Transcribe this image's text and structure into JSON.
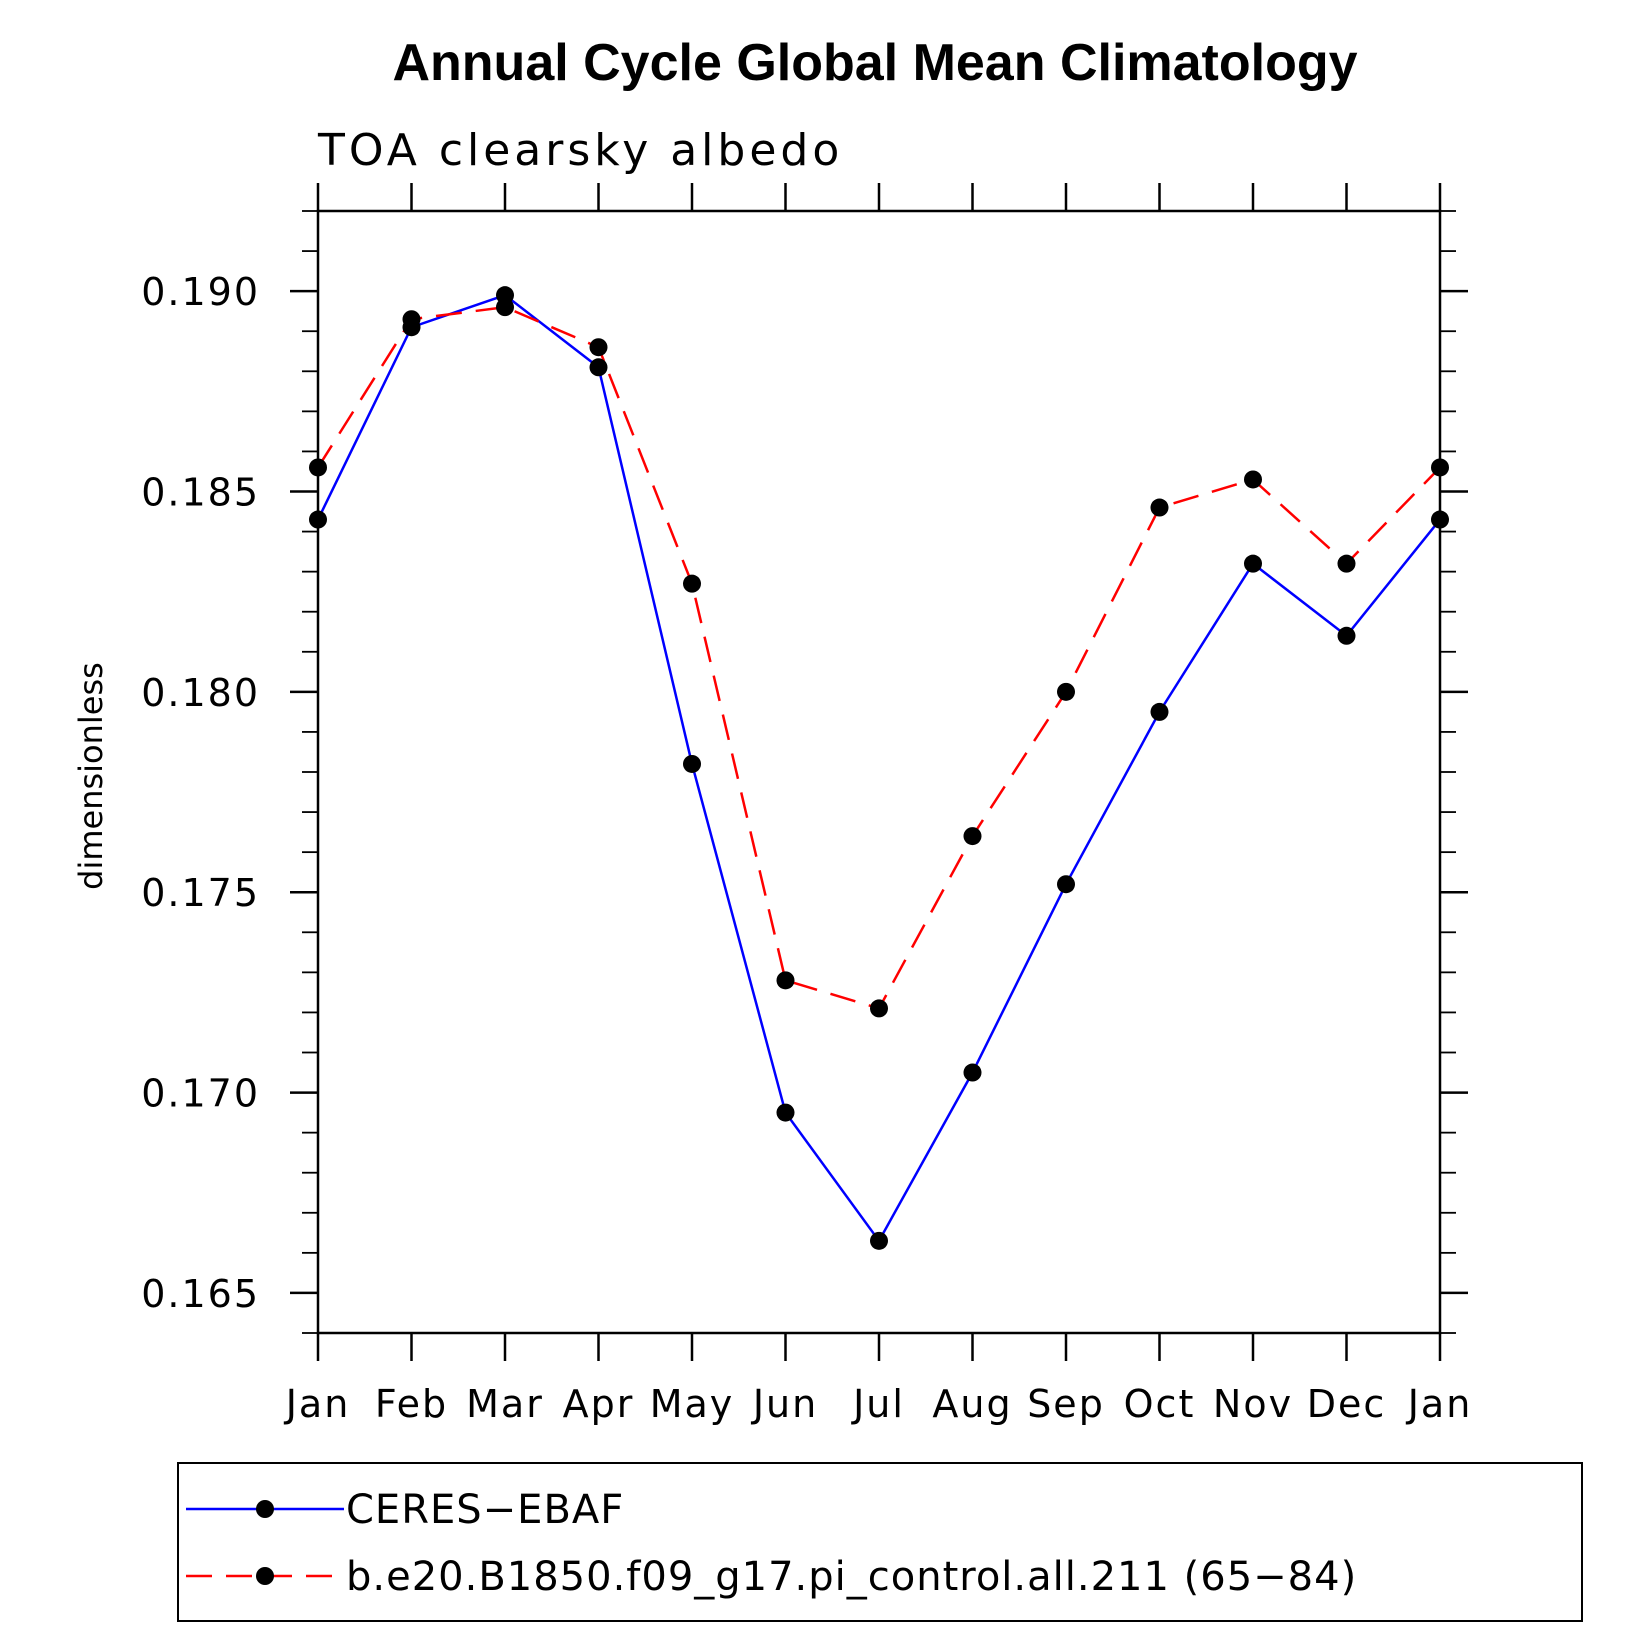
{
  "chart_data": {
    "type": "line",
    "title": "Annual Cycle Global Mean Climatology",
    "subtitle": "TOA clearsky albedo",
    "ylabel": "dimensionless",
    "xlabel": "",
    "categories": [
      "Jan",
      "Feb",
      "Mar",
      "Apr",
      "May",
      "Jun",
      "Jul",
      "Aug",
      "Sep",
      "Oct",
      "Nov",
      "Dec",
      "Jan"
    ],
    "ylim": [
      0.164,
      0.192
    ],
    "yticks": [
      "0.165",
      "0.170",
      "0.175",
      "0.180",
      "0.185",
      "0.190"
    ],
    "grid": false,
    "legend_position": "bottom",
    "series": [
      {
        "name": "CERES−EBAF",
        "color": "#0000ff",
        "dash": "solid",
        "marker": "filled-circle",
        "values": [
          0.1843,
          0.1891,
          0.1899,
          0.1881,
          0.1782,
          0.1695,
          0.1663,
          0.1705,
          0.1752,
          0.1795,
          0.1832,
          0.1814,
          0.1843
        ]
      },
      {
        "name": "b.e20.B1850.f09_g17.pi_control.all.211 (65−84)",
        "color": "#ff0000",
        "dash": "dashed",
        "marker": "filled-circle",
        "values": [
          0.1856,
          0.1893,
          0.1896,
          0.1886,
          0.1827,
          0.1728,
          0.1721,
          0.1764,
          0.18,
          0.1846,
          0.1853,
          0.1832,
          0.1856
        ]
      }
    ]
  }
}
